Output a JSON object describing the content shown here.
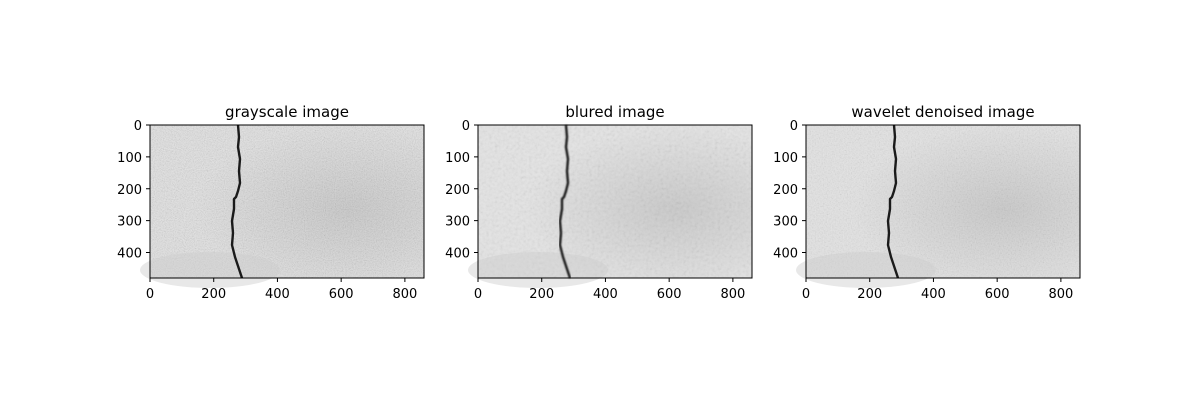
{
  "chart_data": [
    {
      "type": "image",
      "title": "grayscale image",
      "x_ticks": [
        0,
        200,
        400,
        600,
        800
      ],
      "y_ticks": [
        0,
        100,
        200,
        300,
        400
      ],
      "xlim": [
        0,
        860
      ],
      "ylim": [
        480,
        0
      ],
      "image": {
        "colormap": "gray",
        "content": "light gray textured concrete surface with a dark vertical crack near x≈250–290"
      },
      "noise": "high"
    },
    {
      "type": "image",
      "title": "blured image",
      "x_ticks": [
        0,
        200,
        400,
        600,
        800
      ],
      "y_ticks": [
        0,
        100,
        200,
        300,
        400
      ],
      "xlim": [
        0,
        860
      ],
      "ylim": [
        480,
        0
      ],
      "image": {
        "colormap": "gray",
        "content": "light gray textured concrete surface with a dark vertical crack near x≈250–290"
      },
      "noise": "low"
    },
    {
      "type": "image",
      "title": "wavelet denoised image",
      "x_ticks": [
        0,
        200,
        400,
        600,
        800
      ],
      "y_ticks": [
        0,
        100,
        200,
        300,
        400
      ],
      "xlim": [
        0,
        860
      ],
      "ylim": [
        480,
        0
      ],
      "image": {
        "colormap": "gray",
        "content": "light gray textured concrete surface with a dark vertical crack near x≈250–290"
      },
      "noise": "medium"
    }
  ],
  "colors": {
    "background": "#ffffff",
    "axes_edge": "#000000",
    "crack": "#1a1a1a",
    "surface_light": "#e4e4e4",
    "surface_mid": "#cdcdcd"
  }
}
